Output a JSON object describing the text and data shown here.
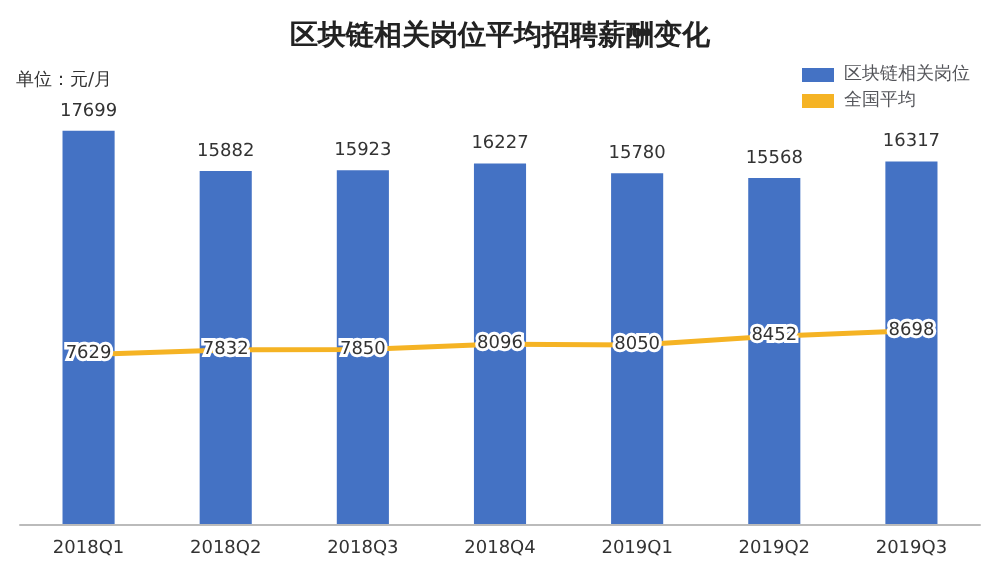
{
  "chart_data": {
    "type": "bar",
    "title": "区块链相关岗位平均招聘薪酬变化",
    "annotations": [
      "单位：元/月"
    ],
    "categories": [
      "2018Q1",
      "2018Q2",
      "2018Q3",
      "2018Q4",
      "2019Q1",
      "2019Q2",
      "2019Q3"
    ],
    "series": [
      {
        "name": "区块链相关岗位",
        "color": "#4472c4",
        "values": [
          17699,
          15882,
          15923,
          16227,
          15780,
          15568,
          16317
        ]
      },
      {
        "name": "全国平均",
        "type": "line",
        "color": "#f5b324",
        "values": [
          7629,
          7832,
          7850,
          8096,
          8050,
          8452,
          8698
        ]
      }
    ],
    "data_labels": true,
    "legend": "top right",
    "marker": "none"
  }
}
